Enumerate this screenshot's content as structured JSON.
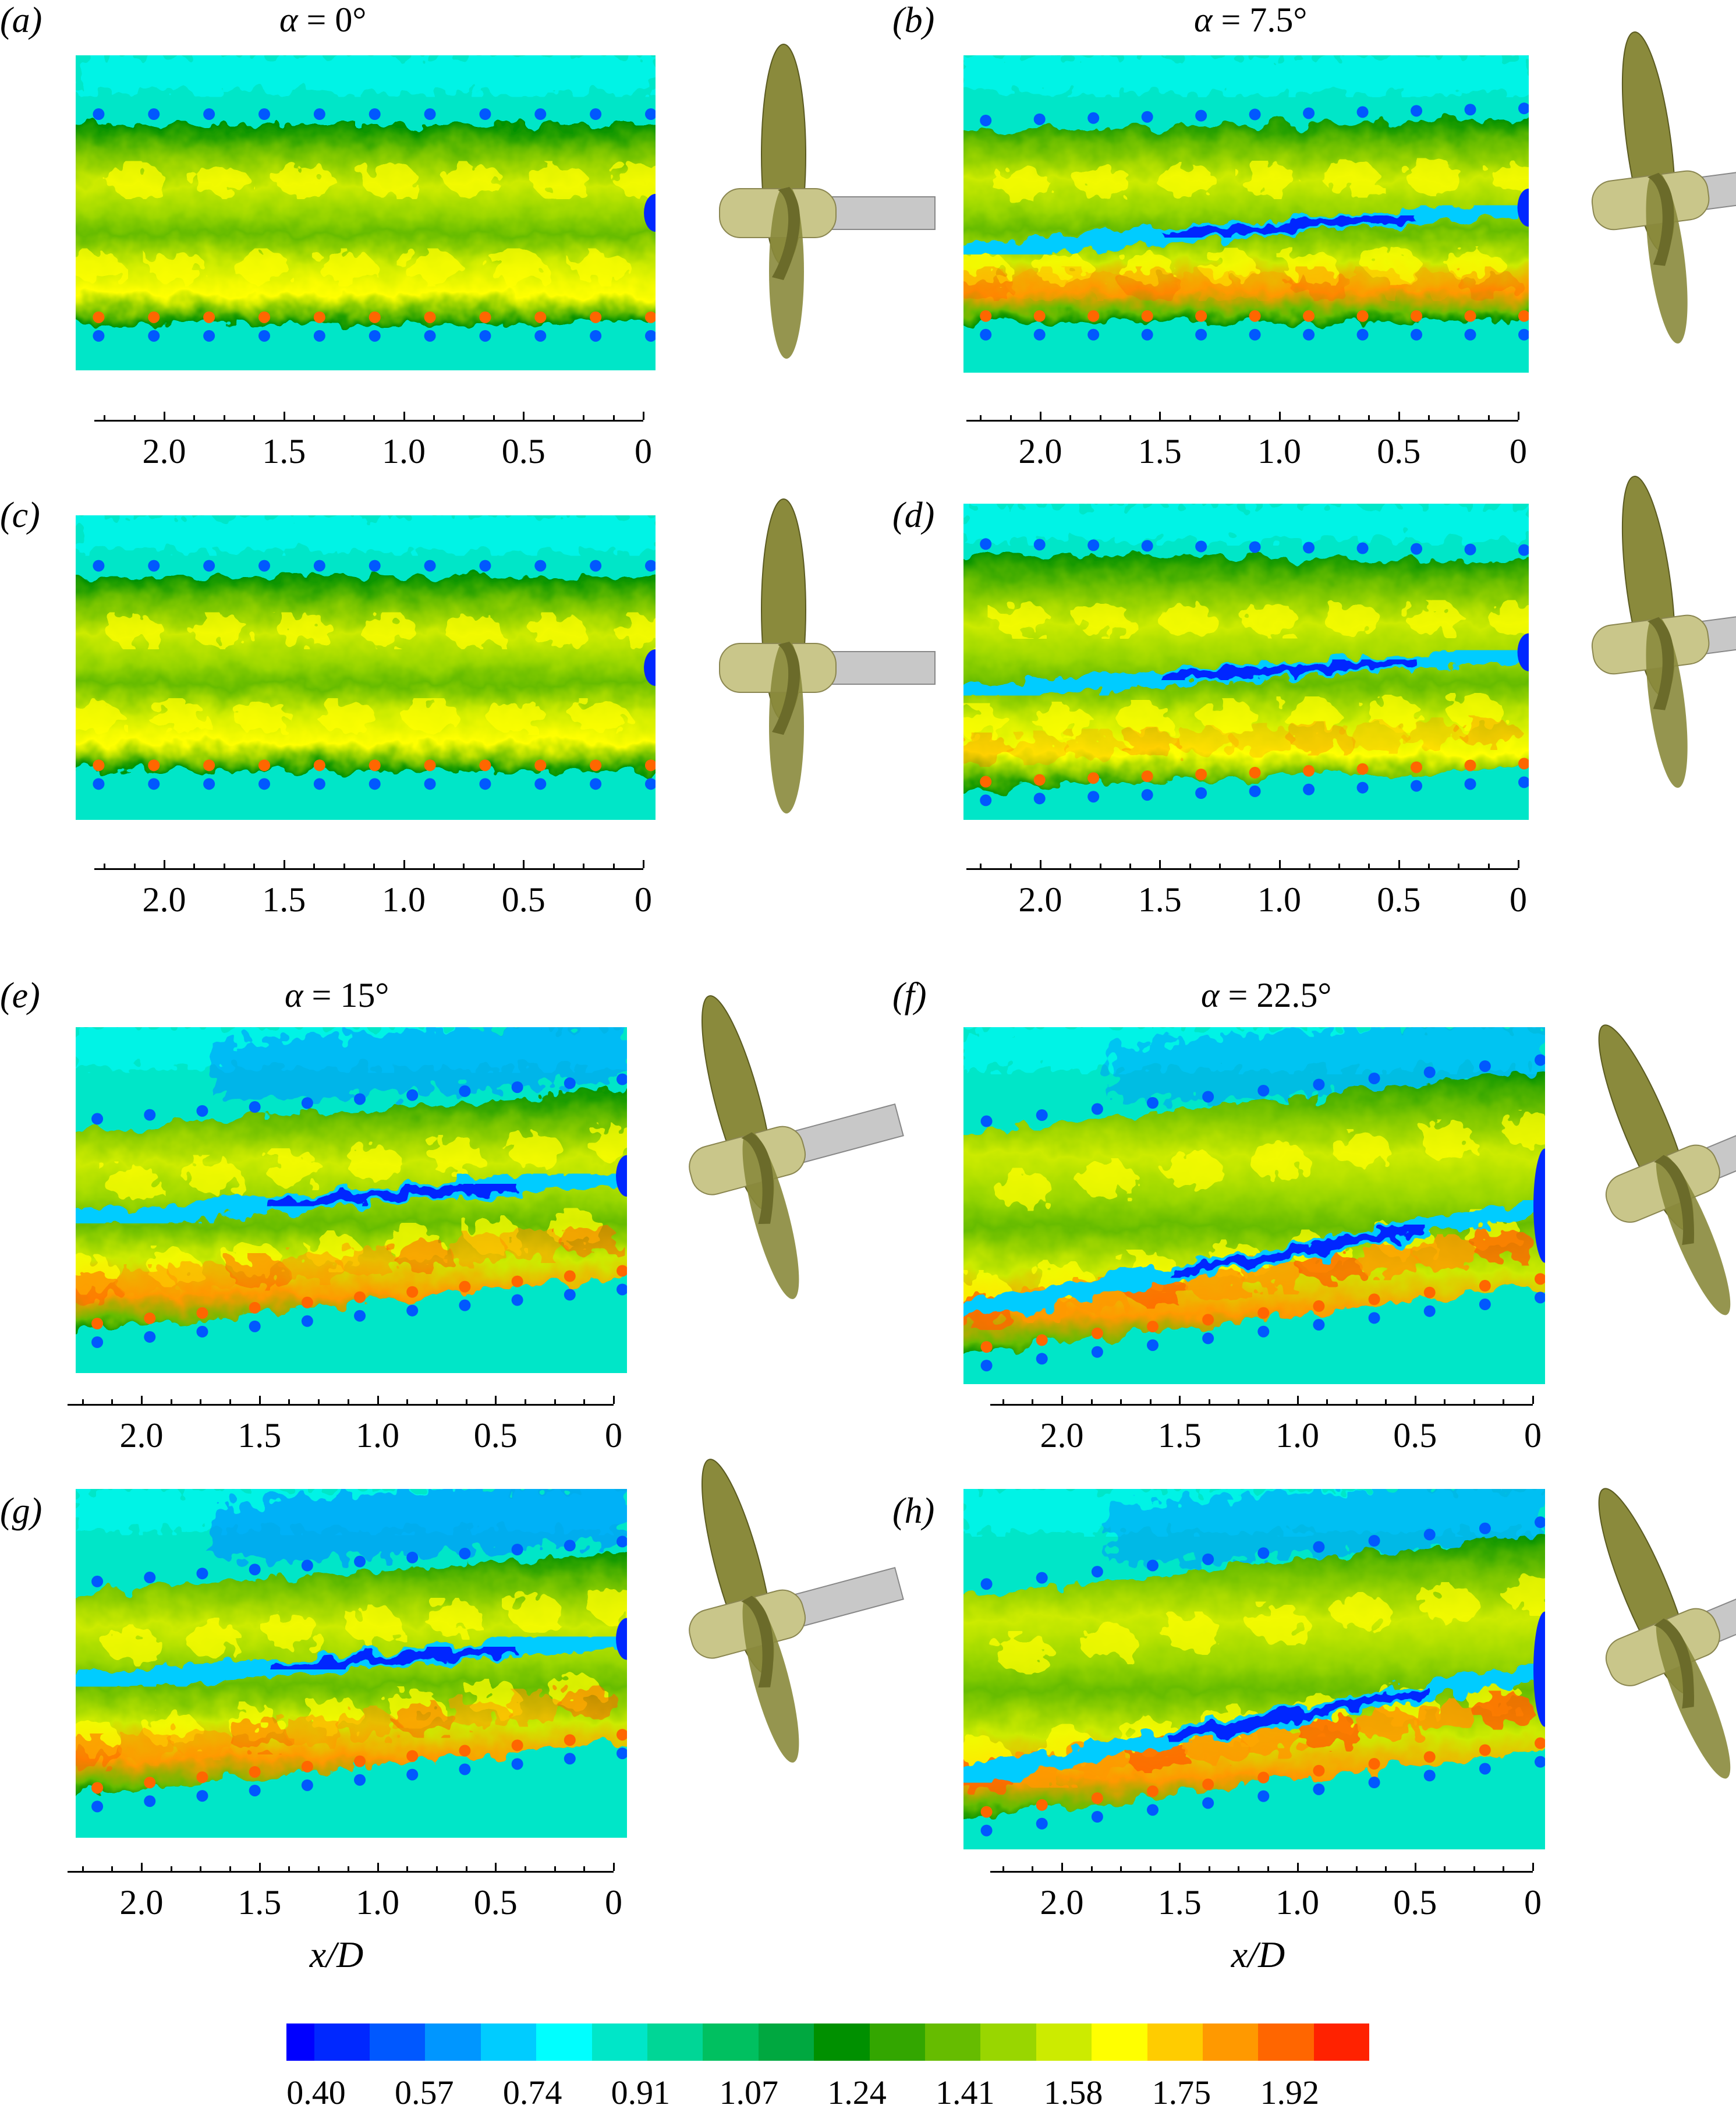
{
  "chart_data": {
    "type": "heatmap",
    "xlabel": "x/D",
    "x_ticks": [
      "2.0",
      "1.5",
      "1.0",
      "0.5",
      "0"
    ],
    "x_tick_values": [
      2.0,
      1.5,
      1.0,
      0.5,
      0
    ],
    "panels": [
      {
        "label": "(a)",
        "title_symbol": "α",
        "title_value": "= 0°",
        "alpha_deg": 0
      },
      {
        "label": "(b)",
        "title_symbol": "α",
        "title_value": "= 7.5°",
        "alpha_deg": 7.5
      },
      {
        "label": "(c)",
        "title_symbol": "",
        "title_value": "",
        "alpha_deg": 0
      },
      {
        "label": "(d)",
        "title_symbol": "",
        "title_value": "",
        "alpha_deg": 7.5
      },
      {
        "label": "(e)",
        "title_symbol": "α",
        "title_value": "= 15°",
        "alpha_deg": 15
      },
      {
        "label": "(f)",
        "title_symbol": "α",
        "title_value": "= 22.5°",
        "alpha_deg": 22.5
      },
      {
        "label": "(g)",
        "title_symbol": "",
        "title_value": "",
        "alpha_deg": 15
      },
      {
        "label": "(h)",
        "title_symbol": "",
        "title_value": "",
        "alpha_deg": 22.5
      }
    ],
    "colorbar": {
      "labels": [
        "0.40",
        "0.57",
        "0.74",
        "0.91",
        "1.07",
        "1.24",
        "1.41",
        "1.58",
        "1.75",
        "1.92"
      ],
      "colors": [
        "#0000ff",
        "#0028ff",
        "#0058ff",
        "#0096ff",
        "#00ccff",
        "#00ffff",
        "#00e6c8",
        "#00d696",
        "#00c060",
        "#00a840",
        "#009000",
        "#33a600",
        "#66bc00",
        "#99d600",
        "#cceb00",
        "#ffff00",
        "#ffcc00",
        "#ff9900",
        "#ff6600",
        "#ff2200"
      ]
    },
    "propeller_colors": {
      "blade": "#8a8a3c",
      "hub": "#c9c68a",
      "shaft": "#c8c8c8"
    }
  }
}
